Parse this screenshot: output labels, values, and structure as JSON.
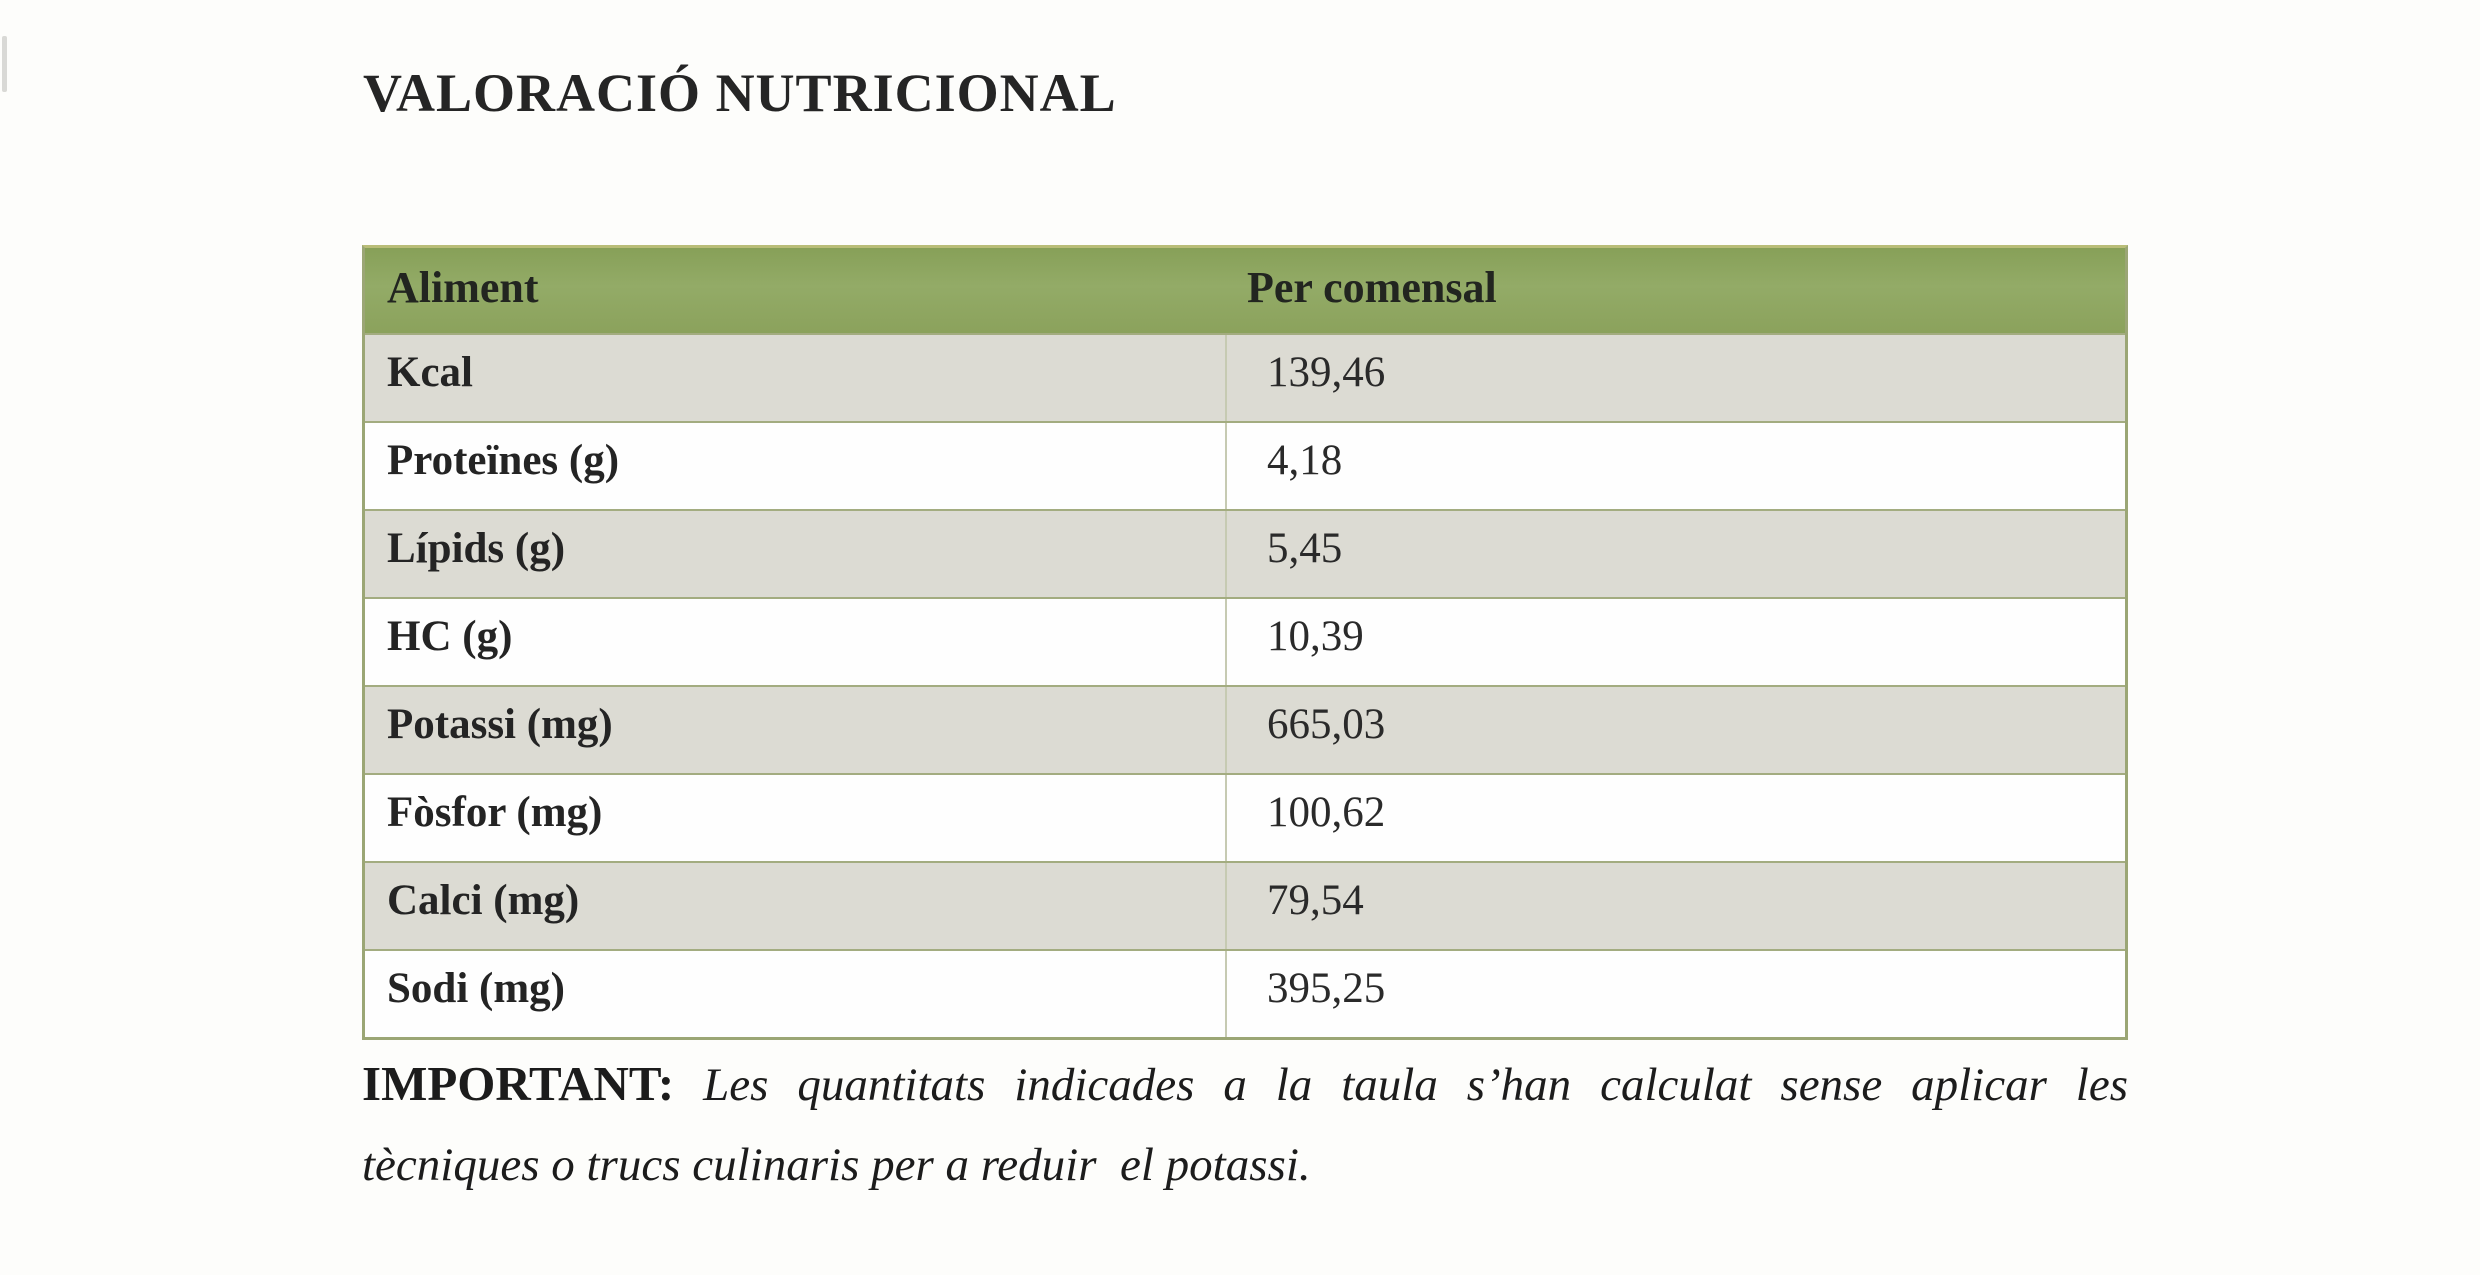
{
  "page": {
    "title": "VALORACIÓ NUTRICIONAL"
  },
  "table": {
    "columns": [
      "Aliment",
      "Per comensal"
    ],
    "rows": [
      {
        "label": "Kcal",
        "value": "139,46"
      },
      {
        "label": "Proteïnes (g)",
        "value": "4,18"
      },
      {
        "label": "Lípids (g)",
        "value": "5,45"
      },
      {
        "label": "HC (g)",
        "value": "10,39"
      },
      {
        "label": "Potassi (mg)",
        "value": "665,03"
      },
      {
        "label": "Fòsfor (mg)",
        "value": "100,62"
      },
      {
        "label": "Calci (mg)",
        "value": "79,54"
      },
      {
        "label": "Sodi (mg)",
        "value": "395,25"
      }
    ]
  },
  "note": {
    "label": "IMPORTANT:",
    "line1": "Les quantitats indicades a la taula s’han calculat sense aplicar les",
    "line2": "tècniques o trucs culinaris per a reduir  el potassi."
  },
  "colors": {
    "header_green": "#8ca45e",
    "row_shaded": "#dcdbd3",
    "row_white": "#fefefe",
    "border_olive": "#9ba675",
    "border_light": "#c6cab2",
    "text_ink": "#1e1e1e"
  }
}
